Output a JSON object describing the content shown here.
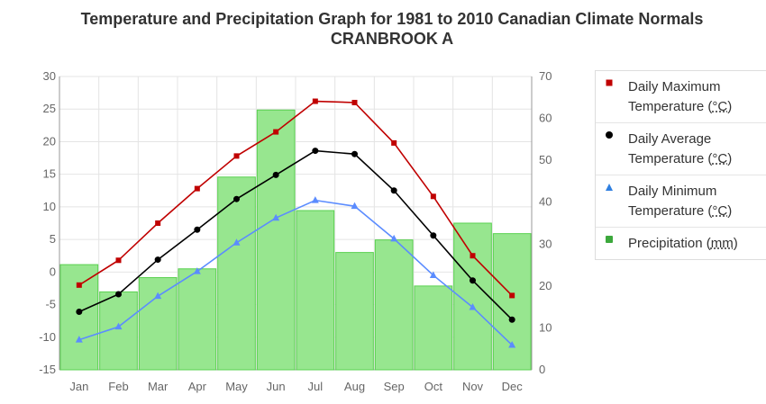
{
  "title_line1": "Temperature and Precipitation Graph for 1981 to 2010 Canadian Climate Normals",
  "title_line2": "CRANBROOK A",
  "colors": {
    "max": "#c00000",
    "avg": "#000000",
    "min": "#5b8cff",
    "precip_fill": "#97e68f",
    "precip_stroke": "#5ad150",
    "grid": "#e4e4e4",
    "axis": "#999999"
  },
  "chart_data": {
    "type": "bar",
    "categories": [
      "Jan",
      "Feb",
      "Mar",
      "Apr",
      "May",
      "Jun",
      "Jul",
      "Aug",
      "Sep",
      "Oct",
      "Nov",
      "Dec"
    ],
    "left_axis": {
      "ylim": [
        -15,
        30
      ],
      "ticks": [
        30,
        25,
        20,
        15,
        10,
        5,
        0,
        -5,
        -10,
        -15
      ]
    },
    "right_axis": {
      "ylim": [
        0,
        70
      ],
      "ticks": [
        70,
        60,
        50,
        40,
        30,
        20,
        10,
        0
      ]
    },
    "grid": true,
    "legend_position": "right",
    "series": [
      {
        "name": "Daily Maximum Temperature",
        "unit": "°C",
        "type": "line",
        "axis": "left",
        "marker": "square",
        "values": [
          -2.0,
          1.8,
          7.5,
          12.8,
          17.8,
          21.5,
          26.2,
          26.0,
          19.8,
          11.6,
          2.5,
          -3.6
        ]
      },
      {
        "name": "Daily Average Temperature",
        "unit": "°C",
        "type": "line",
        "axis": "left",
        "marker": "circle",
        "values": [
          -6.1,
          -3.4,
          1.9,
          6.5,
          11.2,
          14.9,
          18.6,
          18.1,
          12.5,
          5.6,
          -1.3,
          -7.3
        ]
      },
      {
        "name": "Daily Minimum Temperature",
        "unit": "°C",
        "type": "line",
        "axis": "left",
        "marker": "triangle",
        "values": [
          -10.4,
          -8.4,
          -3.7,
          0.1,
          4.5,
          8.3,
          11.0,
          10.1,
          5.1,
          -0.5,
          -5.4,
          -11.2
        ]
      },
      {
        "name": "Precipitation",
        "unit": "mm",
        "type": "bar",
        "axis": "right",
        "values": [
          25.1,
          18.6,
          22.0,
          24.1,
          46.0,
          62.0,
          38.0,
          28.0,
          31.0,
          20.0,
          35.0,
          32.5
        ]
      }
    ]
  }
}
